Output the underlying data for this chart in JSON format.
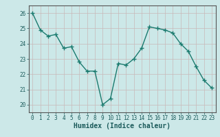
{
  "x": [
    0,
    1,
    2,
    3,
    4,
    5,
    6,
    7,
    8,
    9,
    10,
    11,
    12,
    13,
    14,
    15,
    16,
    17,
    18,
    19,
    20,
    21,
    22,
    23
  ],
  "y": [
    26.0,
    24.9,
    24.5,
    24.6,
    23.7,
    23.8,
    22.8,
    22.2,
    22.2,
    20.0,
    20.4,
    22.7,
    22.6,
    23.0,
    23.7,
    25.1,
    25.0,
    24.9,
    24.7,
    24.0,
    23.5,
    22.5,
    21.6,
    21.1
  ],
  "line_color": "#1a7a6e",
  "marker": "+",
  "marker_size": 4,
  "xlabel": "Humidex (Indice chaleur)",
  "ylim": [
    19.5,
    26.5
  ],
  "xlim": [
    -0.5,
    23.5
  ],
  "yticks": [
    20,
    21,
    22,
    23,
    24,
    25,
    26
  ],
  "xticks": [
    0,
    1,
    2,
    3,
    4,
    5,
    6,
    7,
    8,
    9,
    10,
    11,
    12,
    13,
    14,
    15,
    16,
    17,
    18,
    19,
    20,
    21,
    22,
    23
  ],
  "bg_color": "#cce8e8",
  "grid_color": "#c8b8b8",
  "axis_bg": "#cce8e8",
  "line_width": 1.0,
  "tick_fontsize": 5.5,
  "xlabel_fontsize": 7
}
